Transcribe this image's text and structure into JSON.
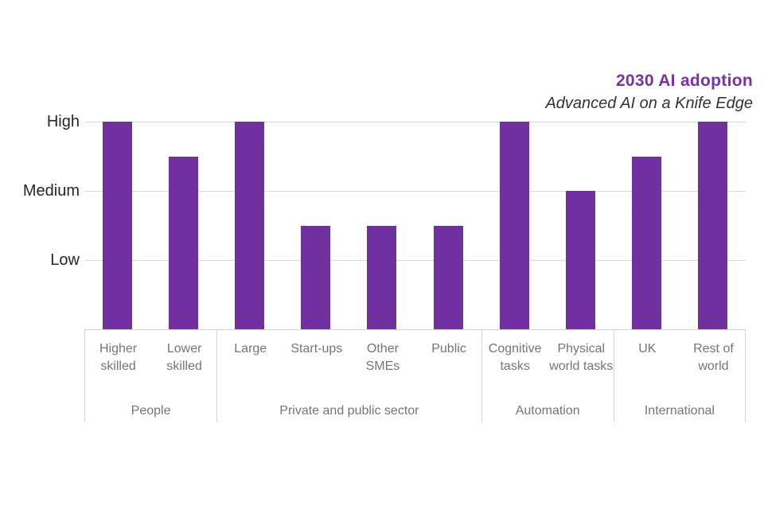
{
  "header": {
    "title": "2030 AI adoption",
    "subtitle": "Advanced AI on a Knife Edge"
  },
  "colors": {
    "bar": "#7030a0",
    "title_text": "#7b2fad",
    "subtitle_text": "#333333",
    "axis_text": "#262626",
    "gridline": "#d9d9d9",
    "panel_border": "#d2d2d2",
    "label_text": "#757575"
  },
  "chart_data": {
    "type": "bar",
    "title": "2030 AI adoption",
    "subtitle": "Advanced AI on a Knife Edge",
    "xlabel": "",
    "ylabel": "",
    "ylim": [
      0,
      3
    ],
    "grid": true,
    "legend": false,
    "bar_color": "#7030a0",
    "value_scale": {
      "Low": 1,
      "Medium": 2,
      "High": 3
    },
    "y_ticks": [
      {
        "label": "High",
        "value": 3
      },
      {
        "label": "Medium",
        "value": 2
      },
      {
        "label": "Low",
        "value": 1
      }
    ],
    "groups": [
      {
        "label": "People",
        "bars": [
          {
            "label": "Higher skilled",
            "value": 3,
            "level": "High"
          },
          {
            "label": "Lower skilled",
            "value": 2.5,
            "level": "Medium-High"
          }
        ]
      },
      {
        "label": "Private and public sector",
        "bars": [
          {
            "label": "Large",
            "value": 3,
            "level": "High"
          },
          {
            "label": "Start-ups",
            "value": 1.5,
            "level": "Low-Medium"
          },
          {
            "label": "Other SMEs",
            "value": 1.5,
            "level": "Low-Medium"
          },
          {
            "label": "Public",
            "value": 1.5,
            "level": "Low-Medium"
          }
        ]
      },
      {
        "label": "Automation",
        "bars": [
          {
            "label": "Cognitive tasks",
            "value": 3,
            "level": "High"
          },
          {
            "label": "Physical world tasks",
            "value": 2,
            "level": "Medium"
          }
        ]
      },
      {
        "label": "International",
        "bars": [
          {
            "label": "UK",
            "value": 2.5,
            "level": "Medium-High"
          },
          {
            "label": "Rest of world",
            "value": 3,
            "level": "High"
          }
        ]
      }
    ]
  }
}
